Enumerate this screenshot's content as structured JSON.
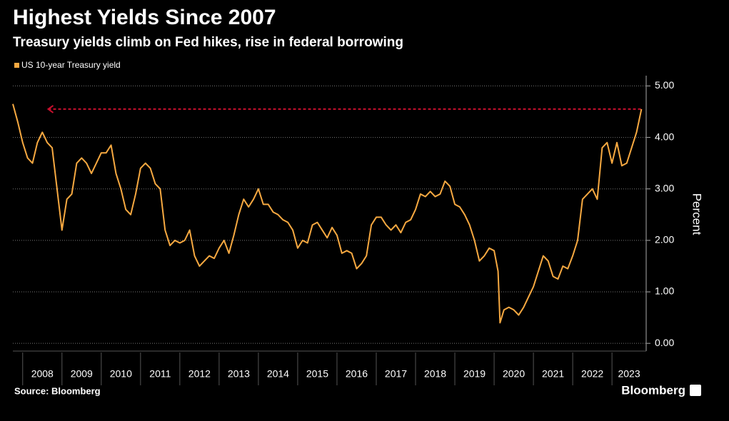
{
  "chart_data": {
    "type": "line",
    "title": "Highest Yields Since 2007",
    "subtitle": "Treasury yields climb on Fed hikes, rise in federal borrowing",
    "y_axis_label": "Percent",
    "source": "Source: Bloomberg",
    "brand": "Bloomberg",
    "x": [
      2007.75,
      2007.875,
      2008.0,
      2008.125,
      2008.25,
      2008.375,
      2008.5,
      2008.625,
      2008.75,
      2008.875,
      2009.0,
      2009.125,
      2009.25,
      2009.375,
      2009.5,
      2009.625,
      2009.75,
      2009.875,
      2010.0,
      2010.125,
      2010.25,
      2010.375,
      2010.5,
      2010.625,
      2010.75,
      2010.875,
      2011.0,
      2011.125,
      2011.25,
      2011.375,
      2011.5,
      2011.625,
      2011.75,
      2011.875,
      2012.0,
      2012.125,
      2012.25,
      2012.375,
      2012.5,
      2012.625,
      2012.75,
      2012.875,
      2013.0,
      2013.125,
      2013.25,
      2013.375,
      2013.5,
      2013.625,
      2013.75,
      2013.875,
      2014.0,
      2014.125,
      2014.25,
      2014.375,
      2014.5,
      2014.625,
      2014.75,
      2014.875,
      2015.0,
      2015.125,
      2015.25,
      2015.375,
      2015.5,
      2015.625,
      2015.75,
      2015.875,
      2016.0,
      2016.125,
      2016.25,
      2016.375,
      2016.5,
      2016.625,
      2016.75,
      2016.875,
      2017.0,
      2017.125,
      2017.25,
      2017.375,
      2017.5,
      2017.625,
      2017.75,
      2017.875,
      2018.0,
      2018.125,
      2018.25,
      2018.375,
      2018.5,
      2018.625,
      2018.75,
      2018.875,
      2019.0,
      2019.125,
      2019.25,
      2019.375,
      2019.5,
      2019.625,
      2019.75,
      2019.875,
      2020.0,
      2020.1,
      2020.15,
      2020.25,
      2020.375,
      2020.5,
      2020.625,
      2020.75,
      2020.875,
      2021.0,
      2021.125,
      2021.25,
      2021.375,
      2021.5,
      2021.625,
      2021.75,
      2021.875,
      2022.0,
      2022.125,
      2022.25,
      2022.375,
      2022.5,
      2022.625,
      2022.75,
      2022.875,
      2023.0,
      2023.125,
      2023.25,
      2023.375,
      2023.5,
      2023.625,
      2023.75
    ],
    "series": [
      {
        "name": "US 10-year Treasury yield",
        "color": "#f7a941",
        "values": [
          4.65,
          4.3,
          3.9,
          3.6,
          3.5,
          3.9,
          4.1,
          3.9,
          3.8,
          3.0,
          2.2,
          2.8,
          2.9,
          3.5,
          3.6,
          3.5,
          3.3,
          3.5,
          3.7,
          3.7,
          3.85,
          3.3,
          3.0,
          2.6,
          2.5,
          2.9,
          3.4,
          3.5,
          3.4,
          3.1,
          3.0,
          2.2,
          1.9,
          2.0,
          1.95,
          2.0,
          2.2,
          1.7,
          1.5,
          1.6,
          1.7,
          1.65,
          1.85,
          2.0,
          1.75,
          2.1,
          2.5,
          2.8,
          2.65,
          2.8,
          3.0,
          2.7,
          2.7,
          2.55,
          2.5,
          2.4,
          2.35,
          2.2,
          1.85,
          2.0,
          1.95,
          2.3,
          2.35,
          2.2,
          2.05,
          2.25,
          2.1,
          1.75,
          1.8,
          1.75,
          1.45,
          1.55,
          1.7,
          2.3,
          2.45,
          2.45,
          2.3,
          2.2,
          2.3,
          2.15,
          2.35,
          2.4,
          2.6,
          2.9,
          2.85,
          2.95,
          2.85,
          2.9,
          3.15,
          3.05,
          2.7,
          2.65,
          2.5,
          2.3,
          2.0,
          1.6,
          1.7,
          1.85,
          1.8,
          1.4,
          0.4,
          0.65,
          0.7,
          0.65,
          0.55,
          0.7,
          0.9,
          1.1,
          1.4,
          1.7,
          1.6,
          1.3,
          1.25,
          1.5,
          1.45,
          1.7,
          2.0,
          2.8,
          2.9,
          3.0,
          2.8,
          3.8,
          3.9,
          3.5,
          3.9,
          3.45,
          3.5,
          3.8,
          4.1,
          4.55
        ]
      }
    ],
    "reference_line": {
      "value": 4.55,
      "color": "#c8102e",
      "xlim": [
        2008.65,
        2023.75
      ]
    },
    "xlim": [
      2007.75,
      2023.87
    ],
    "xticks": [
      2008,
      2009,
      2010,
      2011,
      2012,
      2013,
      2014,
      2015,
      2016,
      2017,
      2018,
      2019,
      2020,
      2021,
      2022,
      2023
    ],
    "ylim": [
      -0.15,
      5.2
    ],
    "yticks": [
      {
        "value": 0,
        "label": "0.00"
      },
      {
        "value": 1,
        "label": "1.00"
      },
      {
        "value": 2,
        "label": "2.00"
      },
      {
        "value": 3,
        "label": "3.00"
      },
      {
        "value": 4,
        "label": "4.00"
      },
      {
        "value": 5,
        "label": "5.00"
      }
    ],
    "grid": true
  }
}
